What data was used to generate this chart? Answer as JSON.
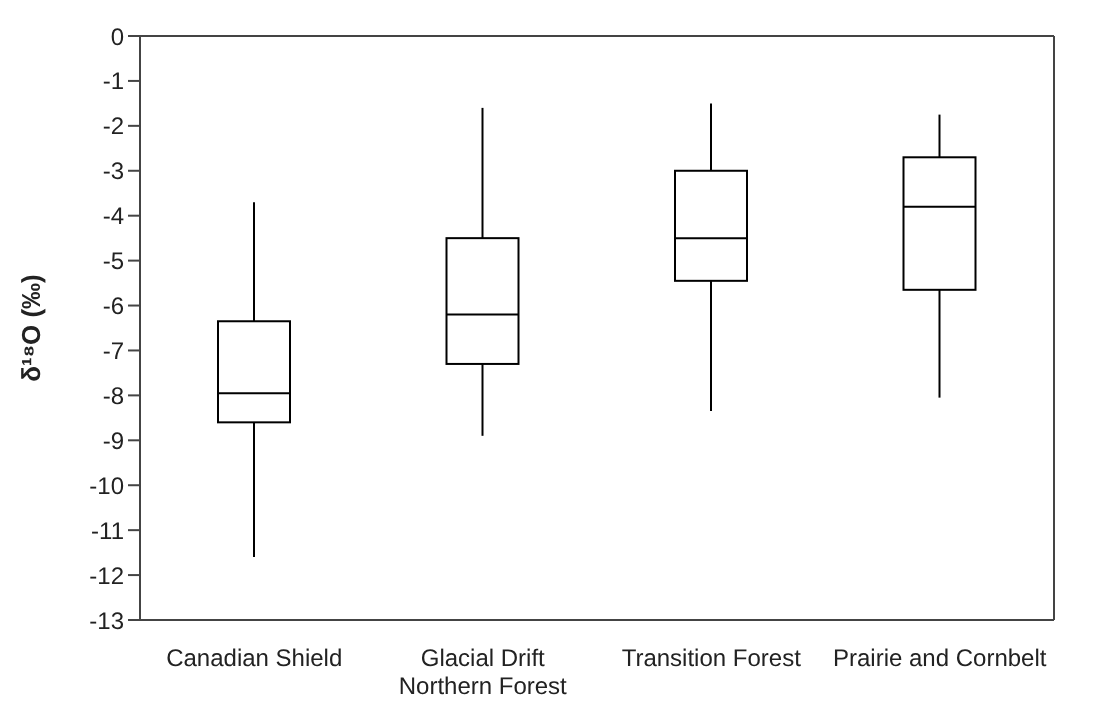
{
  "chart_data": {
    "type": "box",
    "ylabel": "δ¹⁸O (‰)",
    "categories": [
      "Canadian Shield",
      "Glacial Drift\nNorthern Forest",
      "Transition Forest",
      "Prairie and Cornbelt"
    ],
    "boxes": [
      {
        "low": -11.6,
        "q1": -8.6,
        "median": -7.95,
        "q3": -6.35,
        "high": -3.7
      },
      {
        "low": -8.9,
        "q1": -7.3,
        "median": -6.2,
        "q3": -4.5,
        "high": -1.6
      },
      {
        "low": -8.35,
        "q1": -5.45,
        "median": -4.5,
        "q3": -3.0,
        "high": -1.5
      },
      {
        "low": -8.05,
        "q1": -5.65,
        "median": -3.8,
        "q3": -2.7,
        "high": -1.75
      }
    ],
    "ylim": [
      -13,
      0
    ],
    "yticks": [
      0,
      -1,
      -2,
      -3,
      -4,
      -5,
      -6,
      -7,
      -8,
      -9,
      -10,
      -11,
      -12,
      -13
    ]
  }
}
